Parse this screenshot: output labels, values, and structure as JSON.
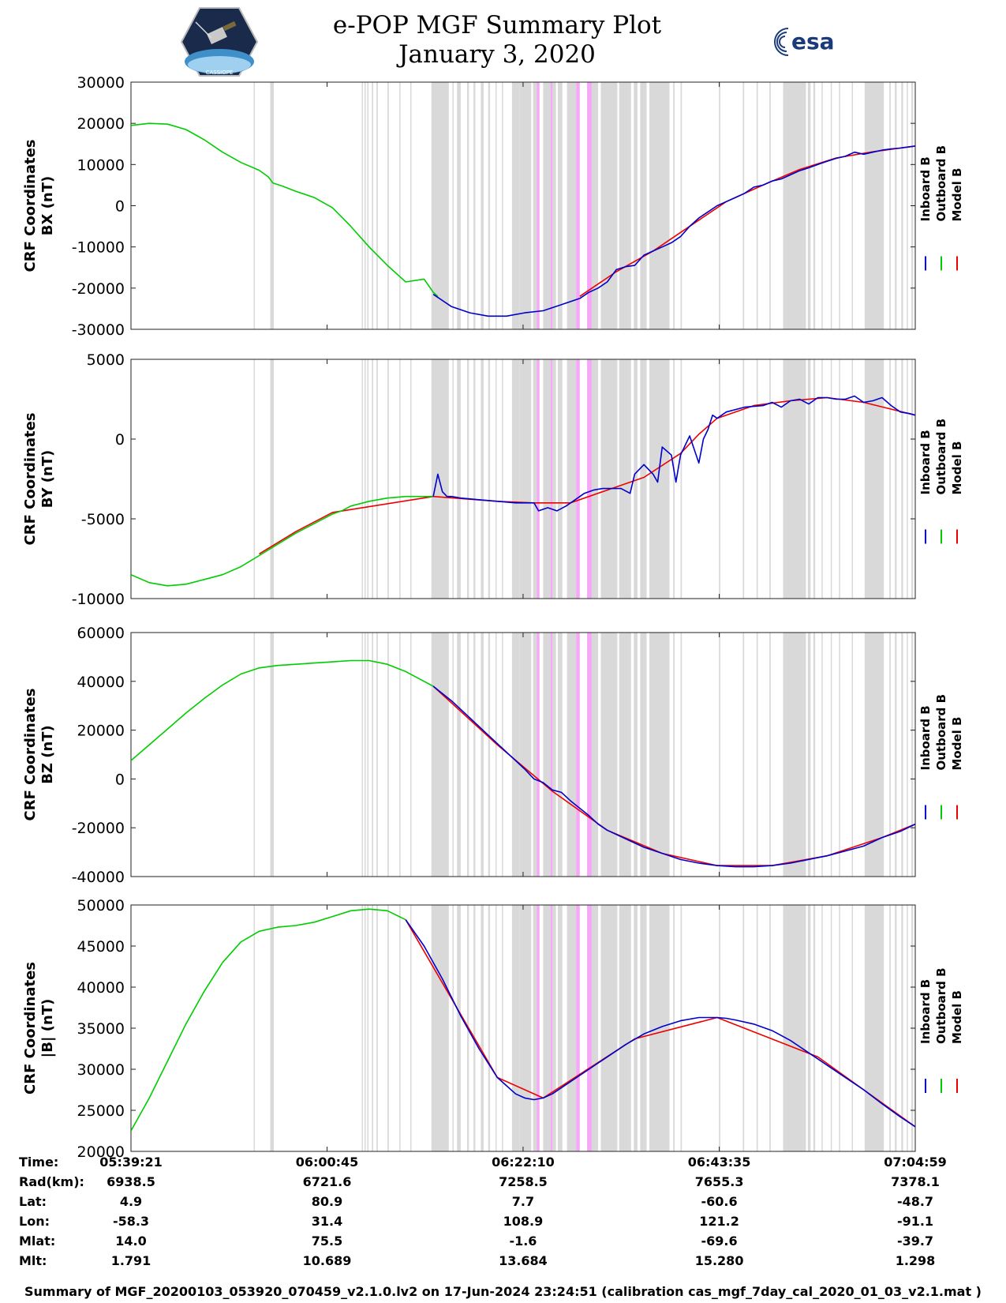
{
  "header": {
    "title_line1": "e-POP MGF Summary Plot",
    "title_line2": "January 3, 2020",
    "logo_left_label": "CASSIOPE",
    "logo_right_label": "esa"
  },
  "colors": {
    "inboard": "#0000cc",
    "outboard": "#00cc00",
    "model": "#ee0000",
    "gray_band": "#d9d9d9",
    "pink_band": "#f5a8f5"
  },
  "chart_data": [
    {
      "type": "line",
      "id": "bx",
      "ylabel_line1": "CRF Coordinates",
      "ylabel_line2": "BX (nT)",
      "ylim": [
        -30000,
        30000
      ],
      "yticks": [
        "30000",
        "20000",
        "10000",
        "0",
        "-10000",
        "-20000",
        "-30000"
      ],
      "ytick_values": [
        30000,
        20000,
        10000,
        0,
        -10000,
        -20000,
        -30000
      ],
      "legend": [
        "Inboard B",
        "Outboard B",
        "Model B"
      ],
      "xlim": [
        0,
        85.63
      ],
      "series": [
        {
          "name": "Outboard B",
          "color": "outboard",
          "x": [
            0,
            2,
            4,
            6,
            8,
            10,
            12,
            14,
            15,
            15.5,
            16.5,
            18,
            20,
            22,
            24,
            26,
            28,
            30,
            32,
            33,
            33.5
          ],
          "y": [
            19500,
            20000,
            19800,
            18500,
            16000,
            13000,
            10500,
            8600,
            7000,
            5500,
            4800,
            3500,
            2000,
            -500,
            -5000,
            -10000,
            -14500,
            -18500,
            -17800,
            -21000,
            -22000
          ]
        },
        {
          "name": "Inboard B",
          "color": "inboard",
          "x": [
            33,
            35,
            37,
            39,
            41,
            43,
            45,
            47,
            49,
            50,
            51,
            52,
            53,
            54,
            55,
            56,
            57,
            58,
            59,
            60,
            61,
            62,
            63,
            64,
            65,
            66,
            67,
            68,
            69,
            70,
            71,
            72,
            73,
            74,
            75,
            76,
            77,
            78,
            79,
            80,
            81,
            82,
            83,
            84,
            85,
            85.63
          ],
          "y": [
            -21500,
            -24500,
            -26000,
            -26800,
            -26800,
            -26000,
            -25500,
            -24000,
            -22500,
            -21000,
            -20000,
            -18500,
            -15500,
            -14800,
            -14500,
            -12000,
            -11000,
            -10000,
            -9000,
            -7500,
            -5000,
            -3000,
            -1500,
            0,
            1000,
            2000,
            3000,
            4500,
            5000,
            6000,
            6500,
            7500,
            8500,
            9200,
            10000,
            10800,
            11500,
            12000,
            13000,
            12500,
            13000,
            13500,
            13800,
            14000,
            14300,
            14500
          ]
        },
        {
          "name": "Model B",
          "color": "model",
          "x": [
            49,
            53,
            57,
            61,
            65,
            69,
            73,
            77,
            81,
            85.63
          ],
          "y": [
            -22000,
            -16000,
            -11000,
            -5000,
            1000,
            5000,
            8800,
            11600,
            13100,
            14500
          ]
        }
      ]
    },
    {
      "type": "line",
      "id": "by",
      "ylabel_line1": "CRF Coordinates",
      "ylabel_line2": "BY (nT)",
      "ylim": [
        -10000,
        5000
      ],
      "yticks": [
        "5000",
        "0",
        "-5000",
        "-10000"
      ],
      "ytick_values": [
        5000,
        0,
        -5000,
        -10000
      ],
      "legend": [
        "Inboard B",
        "Outboard B",
        "Model B"
      ],
      "xlim": [
        0,
        85.63
      ],
      "series": [
        {
          "name": "Outboard B",
          "color": "outboard",
          "x": [
            0,
            2,
            4,
            6,
            8,
            10,
            12,
            14,
            16,
            18,
            20,
            22,
            23,
            24,
            26,
            28,
            30,
            32,
            33
          ],
          "y": [
            -8500,
            -9000,
            -9200,
            -9100,
            -8800,
            -8500,
            -8000,
            -7300,
            -6600,
            -5900,
            -5300,
            -4700,
            -4500,
            -4200,
            -3900,
            -3700,
            -3600,
            -3600,
            -3600
          ]
        },
        {
          "name": "Inboard B",
          "color": "inboard",
          "x": [
            33,
            33.5,
            34,
            34.5,
            35,
            36,
            38,
            40,
            42,
            44,
            44.5,
            45.5,
            46.5,
            47.5,
            48.5,
            49.5,
            50.5,
            51.5,
            52.5,
            53.5,
            54.5,
            55,
            56,
            57,
            57.5,
            58,
            59,
            59.5,
            60,
            61,
            62,
            62.5,
            63,
            63.5,
            64,
            64.5,
            65,
            67,
            69,
            70,
            71,
            72,
            73,
            74,
            75,
            76,
            77,
            78,
            79,
            80,
            81,
            82,
            83,
            84,
            85,
            85.63
          ],
          "y": [
            -3600,
            -2200,
            -3300,
            -3600,
            -3600,
            -3700,
            -3800,
            -3900,
            -4000,
            -4000,
            -4500,
            -4300,
            -4500,
            -4200,
            -3800,
            -3400,
            -3200,
            -3100,
            -3100,
            -3100,
            -3400,
            -2200,
            -1600,
            -2200,
            -2700,
            -500,
            -1000,
            -2700,
            -1000,
            200,
            -1500,
            0,
            600,
            1500,
            1300,
            1500,
            1700,
            2000,
            2100,
            2300,
            2000,
            2400,
            2500,
            2200,
            2600,
            2600,
            2500,
            2500,
            2700,
            2300,
            2400,
            2600,
            2100,
            1700,
            1600,
            1500
          ]
        },
        {
          "name": "Model B",
          "color": "model",
          "x": [
            14,
            18,
            22,
            33,
            40,
            44,
            48,
            52,
            56,
            60,
            62,
            64,
            68,
            72,
            76,
            80,
            85.63
          ],
          "y": [
            -7200,
            -5800,
            -4600,
            -3600,
            -3900,
            -4000,
            -4000,
            -3200,
            -2400,
            -900,
            300,
            1300,
            2100,
            2400,
            2600,
            2300,
            1500
          ]
        }
      ]
    },
    {
      "type": "line",
      "id": "bz",
      "ylabel_line1": "CRF Coordinates",
      "ylabel_line2": "BZ (nT)",
      "ylim": [
        -40000,
        60000
      ],
      "yticks": [
        "60000",
        "40000",
        "20000",
        "0",
        "-20000",
        "-40000"
      ],
      "ytick_values": [
        60000,
        40000,
        20000,
        0,
        -20000,
        -40000
      ],
      "legend": [
        "Inboard B",
        "Outboard B",
        "Model B"
      ],
      "xlim": [
        0,
        85.63
      ],
      "series": [
        {
          "name": "Outboard B",
          "color": "outboard",
          "x": [
            0,
            2,
            4,
            6,
            8,
            10,
            12,
            14,
            16,
            18,
            20,
            22,
            24,
            26,
            28,
            30,
            32,
            33
          ],
          "y": [
            7500,
            14000,
            20500,
            27000,
            33000,
            38500,
            43000,
            45500,
            46500,
            47000,
            47500,
            48000,
            48500,
            48500,
            47000,
            44000,
            40000,
            38000
          ]
        },
        {
          "name": "Inboard B",
          "color": "inboard",
          "x": [
            33,
            35,
            37,
            39,
            41,
            43,
            44,
            45,
            46,
            47,
            48,
            49,
            50,
            51,
            52,
            54,
            56,
            58,
            60,
            62,
            64,
            66,
            68,
            70,
            72,
            74,
            76,
            78,
            80,
            82,
            84,
            85.63
          ],
          "y": [
            38000,
            32000,
            25000,
            18000,
            11000,
            4000,
            0,
            -1500,
            -4500,
            -5500,
            -9000,
            -12000,
            -15000,
            -18500,
            -21000,
            -24500,
            -28000,
            -30500,
            -33000,
            -34500,
            -35500,
            -36000,
            -36000,
            -35500,
            -34500,
            -33000,
            -31500,
            -29500,
            -27500,
            -24000,
            -21500,
            -18500
          ]
        },
        {
          "name": "Model B",
          "color": "model",
          "x": [
            33,
            40,
            46,
            52,
            58,
            64,
            70,
            76,
            82,
            85.63
          ],
          "y": [
            38000,
            14000,
            -5000,
            -21000,
            -30500,
            -35500,
            -35500,
            -31500,
            -24000,
            -18500
          ]
        }
      ]
    },
    {
      "type": "line",
      "id": "bmag",
      "ylabel_line1": "CRF Coordinates",
      "ylabel_line2": "|B| (nT)",
      "ylim": [
        20000,
        50000
      ],
      "yticks": [
        "50000",
        "45000",
        "40000",
        "35000",
        "30000",
        "25000",
        "20000"
      ],
      "ytick_values": [
        50000,
        45000,
        40000,
        35000,
        30000,
        25000,
        20000
      ],
      "legend": [
        "Inboard B",
        "Outboard B",
        "Model B"
      ],
      "xlim": [
        0,
        85.63
      ],
      "series": [
        {
          "name": "Outboard B",
          "color": "outboard",
          "x": [
            0,
            2,
            4,
            6,
            8,
            10,
            12,
            14,
            16,
            18,
            20,
            22,
            24,
            26,
            28,
            30
          ],
          "y": [
            22500,
            26500,
            31000,
            35500,
            39500,
            43000,
            45500,
            46800,
            47300,
            47500,
            47900,
            48600,
            49300,
            49500,
            49300,
            48200
          ]
        },
        {
          "name": "Inboard B",
          "color": "inboard",
          "x": [
            30,
            32,
            34,
            36,
            38,
            40,
            42,
            43,
            44,
            45,
            46,
            48,
            50,
            52,
            54,
            56,
            58,
            60,
            62,
            64,
            65,
            66,
            68,
            70,
            72,
            74,
            76,
            78,
            80,
            82,
            84,
            85.63
          ],
          "y": [
            48200,
            45000,
            41000,
            36500,
            32500,
            29000,
            27000,
            26500,
            26300,
            26500,
            27000,
            28500,
            30000,
            31500,
            33000,
            34300,
            35200,
            35900,
            36300,
            36300,
            36200,
            36000,
            35500,
            34700,
            33500,
            32000,
            30500,
            29000,
            27500,
            25800,
            24200,
            23000
          ]
        },
        {
          "name": "Model B",
          "color": "model",
          "x": [
            30,
            40,
            45,
            55,
            64,
            75,
            85.63
          ],
          "y": [
            48200,
            29000,
            26500,
            33700,
            36300,
            31500,
            23000
          ]
        }
      ]
    }
  ],
  "bands": {
    "gray": [
      [
        13.4,
        13.5
      ],
      [
        15.2,
        15.6
      ],
      [
        25.2,
        25.3
      ],
      [
        25.5,
        25.6
      ],
      [
        25.8,
        25.9
      ],
      [
        26.3,
        26.45
      ],
      [
        26.8,
        26.95
      ],
      [
        28.0,
        28.15
      ],
      [
        29.3,
        29.4
      ],
      [
        30.5,
        30.6
      ],
      [
        32.8,
        34.7
      ],
      [
        35.1,
        35.2
      ],
      [
        35.6,
        36.0
      ],
      [
        36.7,
        36.9
      ],
      [
        37.4,
        37.6
      ],
      [
        38.2,
        38.5
      ],
      [
        39.0,
        39.2
      ],
      [
        39.8,
        39.9
      ],
      [
        40.5,
        40.6
      ],
      [
        41.6,
        42.4
      ],
      [
        42.4,
        43.7
      ],
      [
        43.9,
        44.3
      ],
      [
        45.0,
        45.8
      ],
      [
        46.0,
        46.4
      ],
      [
        46.6,
        47.1
      ],
      [
        47.6,
        48.6
      ],
      [
        50.3,
        51.0
      ],
      [
        51.3,
        53.1
      ],
      [
        53.3,
        54.6
      ],
      [
        54.9,
        55.3
      ],
      [
        55.6,
        56.3
      ],
      [
        56.6,
        58.8
      ],
      [
        59.2,
        59.35
      ],
      [
        60.0,
        60.15
      ],
      [
        64.2,
        64.35
      ],
      [
        66.8,
        66.95
      ],
      [
        68.3,
        68.45
      ],
      [
        69.7,
        69.85
      ],
      [
        71.2,
        73.7
      ],
      [
        73.9,
        74.2
      ],
      [
        74.5,
        74.7
      ],
      [
        75.4,
        75.5
      ],
      [
        76.4,
        76.5
      ],
      [
        77.3,
        77.4
      ],
      [
        78.7,
        78.8
      ],
      [
        80.1,
        82.2
      ],
      [
        82.8,
        82.95
      ],
      [
        83.4,
        83.6
      ],
      [
        84.1,
        84.3
      ],
      [
        84.7,
        84.8
      ],
      [
        85.2,
        85.4
      ]
    ],
    "pink": [
      [
        44.3,
        44.6
      ],
      [
        45.8,
        46.0
      ],
      [
        48.6,
        49.0
      ],
      [
        49.8,
        50.3
      ]
    ]
  },
  "info_table": {
    "labels": [
      "Time:",
      "Rad(km):",
      "Lat:",
      "Lon:",
      "Mlat:",
      "Mlt:"
    ],
    "columns": [
      [
        "05:39:21",
        "6938.5",
        "4.9",
        "-58.3",
        "14.0",
        "1.791"
      ],
      [
        "06:00:45",
        "6721.6",
        "80.9",
        "31.4",
        "75.5",
        "10.689"
      ],
      [
        "06:22:10",
        "7258.5",
        "7.7",
        "108.9",
        "-1.6",
        "13.684"
      ],
      [
        "06:43:35",
        "7655.3",
        "-60.6",
        "121.2",
        "-69.6",
        "15.280"
      ],
      [
        "07:04:59",
        "7378.1",
        "-48.7",
        "-91.1",
        "-39.7",
        "1.298"
      ]
    ],
    "column_x_minutes": [
      0,
      21.41,
      42.81,
      64.23,
      85.63
    ]
  },
  "footer": "Summary of MGF_20200103_053920_070459_v2.1.0.lv2 on 17-Jun-2024 23:24:51 (calibration cas_mgf_7day_cal_2020_01_03_v2.1.mat )"
}
